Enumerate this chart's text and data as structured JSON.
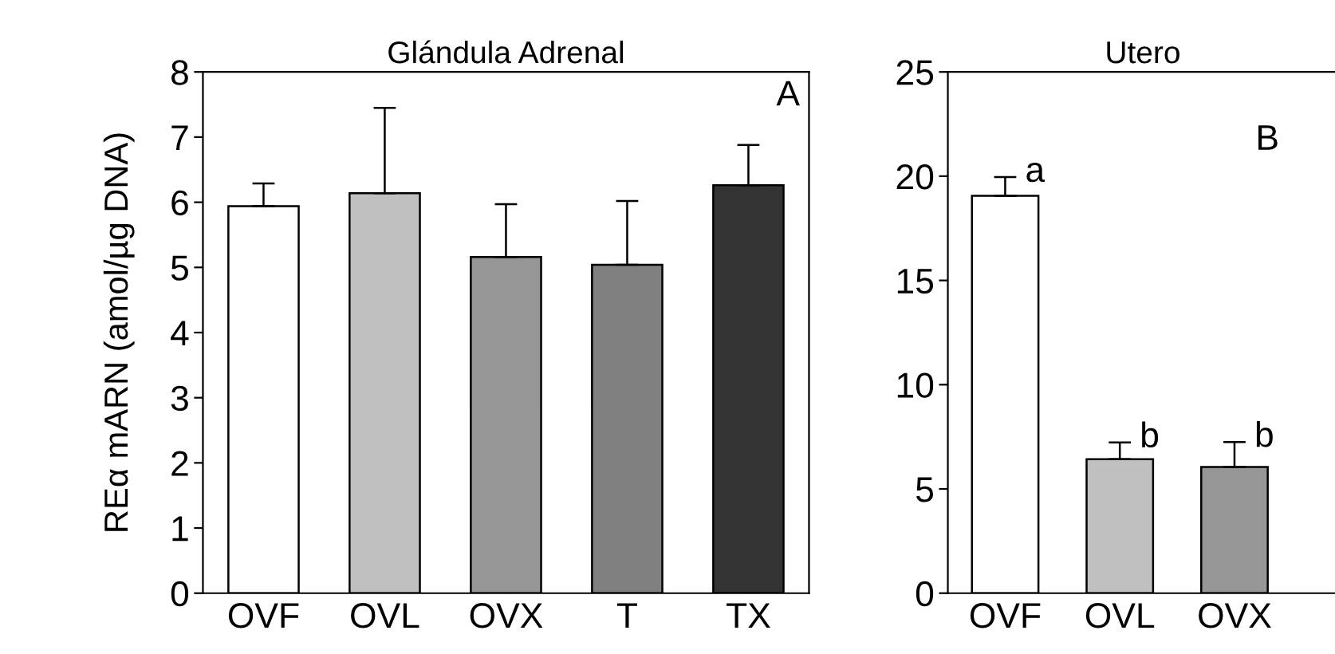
{
  "chart_data": [
    {
      "type": "bar",
      "title": "Glándula Adrenal",
      "ylabel": "REα mARN (amol/µg DNA)",
      "categories": [
        "OVF",
        "OVL",
        "OVX",
        "T",
        "TX"
      ],
      "values": [
        5.94,
        6.14,
        5.16,
        5.04,
        6.26
      ],
      "errors": [
        [
          5.94,
          6.29
        ],
        [
          6.14,
          7.45
        ],
        [
          5.16,
          5.97
        ],
        [
          5.04,
          6.02
        ],
        [
          6.26,
          6.88
        ]
      ],
      "colors": [
        "#ffffff",
        "#c0c0c0",
        "#969696",
        "#808080",
        "#333333"
      ],
      "ylim": [
        0,
        8
      ],
      "yticks": [
        0,
        1,
        2,
        3,
        4,
        5,
        6,
        7,
        8
      ],
      "grid": false,
      "legend": false,
      "annotations": [
        "A"
      ]
    },
    {
      "type": "bar",
      "title": "Utero",
      "categories": [
        "OVF",
        "OVL",
        "OVX"
      ],
      "values": [
        19.06,
        6.43,
        6.05
      ],
      "errors": [
        [
          19.06,
          19.96
        ],
        [
          6.43,
          7.23
        ],
        [
          6.05,
          7.25
        ]
      ],
      "colors": [
        "#ffffff",
        "#c0c0c0",
        "#969696"
      ],
      "ylim": [
        0,
        25
      ],
      "yticks": [
        0,
        5,
        10,
        15,
        20,
        25
      ],
      "grid": false,
      "legend": false,
      "annotations": [
        "B",
        "a",
        "b",
        "b"
      ]
    }
  ]
}
